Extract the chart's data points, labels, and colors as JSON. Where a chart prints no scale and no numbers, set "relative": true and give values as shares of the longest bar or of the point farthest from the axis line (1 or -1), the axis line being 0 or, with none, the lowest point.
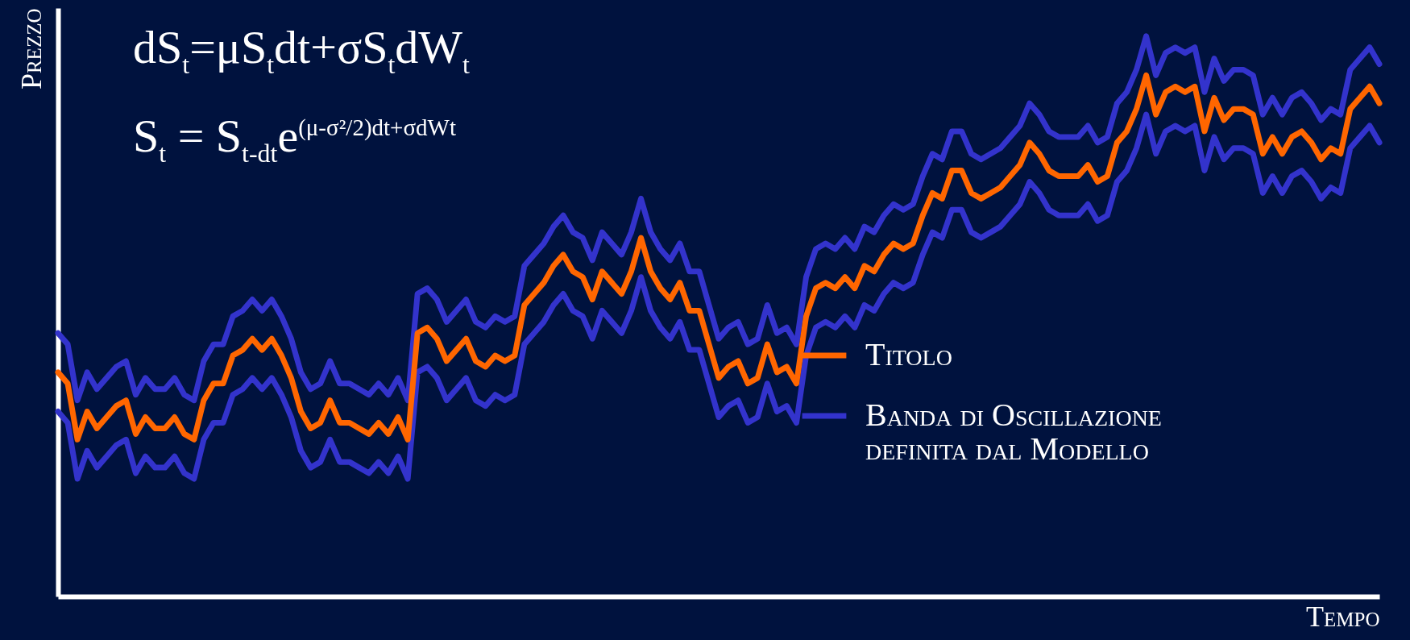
{
  "chart_data": {
    "type": "line",
    "relative": true,
    "xlabel": "Tempo",
    "ylabel": "Prezzo",
    "tick_labels": false,
    "grid": false,
    "legend": "right",
    "line_style": "solid",
    "marker": "none",
    "annotations": [
      "dS$_{t}$=μS$_{t}$dt+σS$_{t}$dW$_{t}$",
      "S$_{t}$ = S$_{t-dt}$e$^{(μ-σ²/2)dt+σdWt}$"
    ],
    "categories": [
      null,
      null,
      null,
      null,
      null,
      null,
      null,
      null,
      null,
      null,
      null,
      null,
      null,
      null,
      null,
      null,
      null,
      null,
      null,
      null,
      null,
      null,
      null,
      null,
      null,
      null,
      null,
      null,
      null,
      null,
      null,
      null,
      null,
      null,
      null,
      null,
      null,
      null,
      null,
      null,
      null,
      null,
      null,
      null,
      null,
      null,
      null,
      null,
      null,
      null,
      null,
      null,
      null,
      null,
      null,
      null,
      null,
      null,
      null,
      null,
      null,
      null,
      null,
      null,
      null,
      null,
      null,
      null,
      null,
      null,
      null,
      null,
      null,
      null,
      null,
      null,
      null,
      null,
      null,
      null,
      null,
      null,
      null,
      null,
      null,
      null,
      null,
      null,
      null,
      null,
      null,
      null,
      null,
      null,
      null,
      null,
      null,
      null,
      null,
      null,
      null,
      null,
      null,
      null,
      null,
      null,
      null,
      null,
      null,
      null,
      null,
      null,
      null,
      null,
      null,
      null,
      null,
      null,
      null,
      null,
      null,
      null,
      null,
      null,
      null,
      null,
      null,
      null,
      null,
      null,
      null,
      null,
      null,
      null,
      null,
      null,
      null
    ],
    "series": [
      {
        "name": "Banda di Oscillazione definita dal Modello",
        "color": "#3333cc",
        "values": [
          0.47,
          0.45,
          0.35,
          0.4,
          0.37,
          0.39,
          0.41,
          0.42,
          0.36,
          0.39,
          0.37,
          0.37,
          0.39,
          0.36,
          0.35,
          0.42,
          0.45,
          0.45,
          0.5,
          0.51,
          0.53,
          0.51,
          0.53,
          0.5,
          0.46,
          0.4,
          0.37,
          0.38,
          0.42,
          0.38,
          0.38,
          0.37,
          0.36,
          0.38,
          0.36,
          0.39,
          0.35,
          0.54,
          0.55,
          0.53,
          0.49,
          0.51,
          0.53,
          0.49,
          0.48,
          0.5,
          0.49,
          0.5,
          0.59,
          0.61,
          0.63,
          0.66,
          0.68,
          0.65,
          0.64,
          0.6,
          0.65,
          0.63,
          0.61,
          0.65,
          0.71,
          0.65,
          0.62,
          0.6,
          0.63,
          0.58,
          0.58,
          0.52,
          0.46,
          0.48,
          0.49,
          0.45,
          0.46,
          0.52,
          0.47,
          0.48,
          0.45,
          0.57,
          0.62,
          0.63,
          0.62,
          0.64,
          0.62,
          0.66,
          0.65,
          0.68,
          0.7,
          0.69,
          0.7,
          0.75,
          0.79,
          0.78,
          0.83,
          0.83,
          0.79,
          0.78,
          0.79,
          0.8,
          0.82,
          0.84,
          0.88,
          0.86,
          0.83,
          0.82,
          0.82,
          0.82,
          0.84,
          0.81,
          0.82,
          0.88,
          0.9,
          0.94,
          1.0,
          0.93,
          0.97,
          0.98,
          0.97,
          0.98,
          0.9,
          0.96,
          0.92,
          0.94,
          0.94,
          0.93,
          0.86,
          0.89,
          0.86,
          0.89,
          0.9,
          0.88,
          0.85,
          0.87,
          0.86,
          0.94,
          0.96,
          0.98,
          0.95
        ]
      },
      {
        "color": "#3333cc",
        "values": [
          0.33,
          0.31,
          0.21,
          0.26,
          0.23,
          0.25,
          0.27,
          0.28,
          0.22,
          0.25,
          0.23,
          0.23,
          0.25,
          0.22,
          0.21,
          0.28,
          0.31,
          0.31,
          0.36,
          0.37,
          0.39,
          0.37,
          0.39,
          0.36,
          0.32,
          0.26,
          0.23,
          0.24,
          0.28,
          0.24,
          0.24,
          0.23,
          0.22,
          0.24,
          0.22,
          0.25,
          0.21,
          0.4,
          0.41,
          0.39,
          0.35,
          0.37,
          0.39,
          0.35,
          0.34,
          0.36,
          0.35,
          0.36,
          0.45,
          0.47,
          0.49,
          0.52,
          0.54,
          0.51,
          0.5,
          0.46,
          0.51,
          0.49,
          0.47,
          0.51,
          0.57,
          0.51,
          0.48,
          0.46,
          0.49,
          0.44,
          0.44,
          0.38,
          0.32,
          0.34,
          0.35,
          0.31,
          0.32,
          0.38,
          0.33,
          0.34,
          0.31,
          0.43,
          0.48,
          0.49,
          0.48,
          0.5,
          0.48,
          0.52,
          0.51,
          0.54,
          0.56,
          0.55,
          0.56,
          0.61,
          0.65,
          0.64,
          0.69,
          0.69,
          0.65,
          0.64,
          0.65,
          0.66,
          0.68,
          0.7,
          0.74,
          0.72,
          0.69,
          0.68,
          0.68,
          0.68,
          0.7,
          0.67,
          0.68,
          0.74,
          0.76,
          0.8,
          0.86,
          0.79,
          0.83,
          0.84,
          0.83,
          0.84,
          0.76,
          0.82,
          0.78,
          0.8,
          0.8,
          0.79,
          0.72,
          0.75,
          0.72,
          0.75,
          0.76,
          0.74,
          0.71,
          0.73,
          0.72,
          0.8,
          0.82,
          0.84,
          0.81
        ]
      },
      {
        "name": "Titolo",
        "color": "#ff6600",
        "values": [
          0.4,
          0.38,
          0.28,
          0.33,
          0.3,
          0.32,
          0.34,
          0.35,
          0.29,
          0.32,
          0.3,
          0.3,
          0.32,
          0.29,
          0.28,
          0.35,
          0.38,
          0.38,
          0.43,
          0.44,
          0.46,
          0.44,
          0.46,
          0.43,
          0.39,
          0.33,
          0.3,
          0.31,
          0.35,
          0.31,
          0.31,
          0.3,
          0.29,
          0.31,
          0.29,
          0.32,
          0.28,
          0.47,
          0.48,
          0.46,
          0.42,
          0.44,
          0.46,
          0.42,
          0.41,
          0.43,
          0.42,
          0.43,
          0.52,
          0.54,
          0.56,
          0.59,
          0.61,
          0.58,
          0.57,
          0.53,
          0.58,
          0.56,
          0.54,
          0.58,
          0.64,
          0.58,
          0.55,
          0.53,
          0.56,
          0.51,
          0.51,
          0.45,
          0.39,
          0.41,
          0.42,
          0.38,
          0.39,
          0.45,
          0.4,
          0.41,
          0.38,
          0.5,
          0.55,
          0.56,
          0.55,
          0.57,
          0.55,
          0.59,
          0.58,
          0.61,
          0.63,
          0.62,
          0.63,
          0.68,
          0.72,
          0.71,
          0.76,
          0.76,
          0.72,
          0.71,
          0.72,
          0.73,
          0.75,
          0.77,
          0.81,
          0.79,
          0.76,
          0.75,
          0.75,
          0.75,
          0.77,
          0.74,
          0.75,
          0.81,
          0.83,
          0.87,
          0.93,
          0.86,
          0.9,
          0.91,
          0.9,
          0.91,
          0.83,
          0.89,
          0.85,
          0.87,
          0.87,
          0.86,
          0.79,
          0.82,
          0.79,
          0.82,
          0.83,
          0.81,
          0.78,
          0.8,
          0.79,
          0.87,
          0.89,
          0.91,
          0.88
        ]
      }
    ]
  }
}
